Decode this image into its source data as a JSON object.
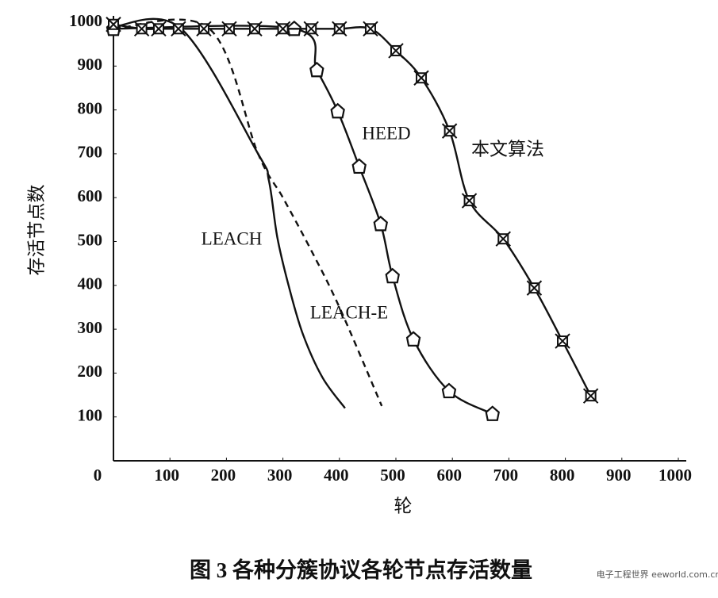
{
  "chart_data": {
    "type": "line",
    "caption": "图 3   各种分簇协议各轮节点存活数量",
    "x_label": "轮",
    "y_label": "存活节点数",
    "xlim": [
      0,
      1000
    ],
    "xticks": [
      0,
      100,
      200,
      300,
      400,
      500,
      600,
      700,
      800,
      900,
      1000
    ],
    "ylim": [
      0,
      1000
    ],
    "yticks": [
      100,
      200,
      300,
      400,
      500,
      600,
      700,
      800,
      900,
      1000
    ],
    "grid": false,
    "series": [
      {
        "name": "LEACH",
        "color": "#111111",
        "dashed": false,
        "marker": null,
        "x": [
          0,
          120,
          256,
          275,
          290,
          310,
          335,
          370,
          410
        ],
        "values": [
          990,
          985,
          700,
          640,
          510,
          400,
          290,
          190,
          120
        ]
      },
      {
        "name": "LEACH-E",
        "color": "#111111",
        "dashed": true,
        "marker": null,
        "x": [
          0,
          170,
          256,
          300,
          350,
          400,
          475
        ],
        "values": [
          985,
          985,
          700,
          600,
          480,
          350,
          125
        ]
      },
      {
        "name": "HEED",
        "color": "#111111",
        "dashed": false,
        "marker": "pentagon",
        "x": [
          0,
          320,
          360,
          397,
          435,
          473,
          494,
          531,
          594,
          671
        ],
        "values": [
          985,
          985,
          891,
          797,
          671,
          540,
          421,
          277,
          159,
          107
        ]
      },
      {
        "name": "本文算法",
        "color": "#111111",
        "dashed": false,
        "marker": "crossed-square",
        "x": [
          0,
          50,
          80,
          115,
          160,
          205,
          250,
          300,
          350,
          400,
          455,
          500,
          545,
          595,
          630,
          690,
          745,
          795,
          845
        ],
        "values": [
          995,
          985,
          985,
          985,
          985,
          985,
          985,
          985,
          985,
          985,
          985,
          935,
          873,
          752,
          593,
          506,
          394,
          273,
          148
        ]
      }
    ],
    "watermark": "电子工程世界 eeworld.com.cn"
  }
}
